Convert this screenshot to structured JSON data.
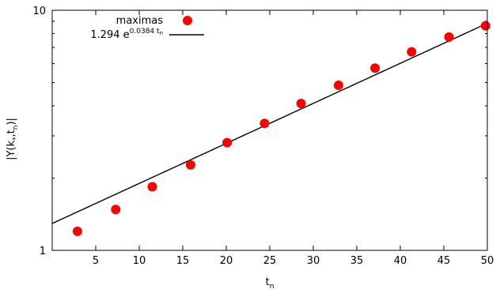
{
  "chart_data": {
    "type": "scatter",
    "title": "",
    "xlabel": {
      "base": "t",
      "sub": "n"
    },
    "ylabel": {
      "text": "|Y(k",
      "sub1": "*",
      "mid": ",t",
      "sub2": "n",
      "end": ")|"
    },
    "xlim": [
      0,
      50
    ],
    "ylim": [
      1,
      10
    ],
    "yscale": "log",
    "grid": false,
    "legend_position": "top-left",
    "xticks": [
      5,
      10,
      15,
      20,
      25,
      30,
      35,
      40,
      45,
      50
    ],
    "xtick_labels": [
      "5",
      "10",
      "15",
      "20",
      "25",
      "30",
      "35",
      "40",
      "45",
      "50"
    ],
    "yticks": [
      1,
      10
    ],
    "ytick_labels": [
      "1",
      "10"
    ],
    "series": [
      {
        "name": "maximas",
        "kind": "points",
        "color": "#ff0000",
        "x": [
          2.9,
          7.3,
          11.5,
          15.9,
          20.1,
          24.4,
          28.6,
          32.9,
          37.1,
          41.3,
          45.6,
          49.8
        ],
        "y": [
          1.2,
          1.48,
          1.84,
          2.27,
          2.81,
          3.38,
          4.09,
          4.87,
          5.74,
          6.71,
          7.74,
          8.62
        ]
      },
      {
        "name": "1.294 e^(0.0384 t_n)",
        "kind": "fit",
        "color": "#000000",
        "coef": 1.294,
        "rate": 0.0384
      }
    ],
    "legend": {
      "points_label": "maximas",
      "fit_prefix": "1.294 e",
      "fit_exponent": "0.0384 t",
      "fit_exponent_sub": "n"
    }
  }
}
